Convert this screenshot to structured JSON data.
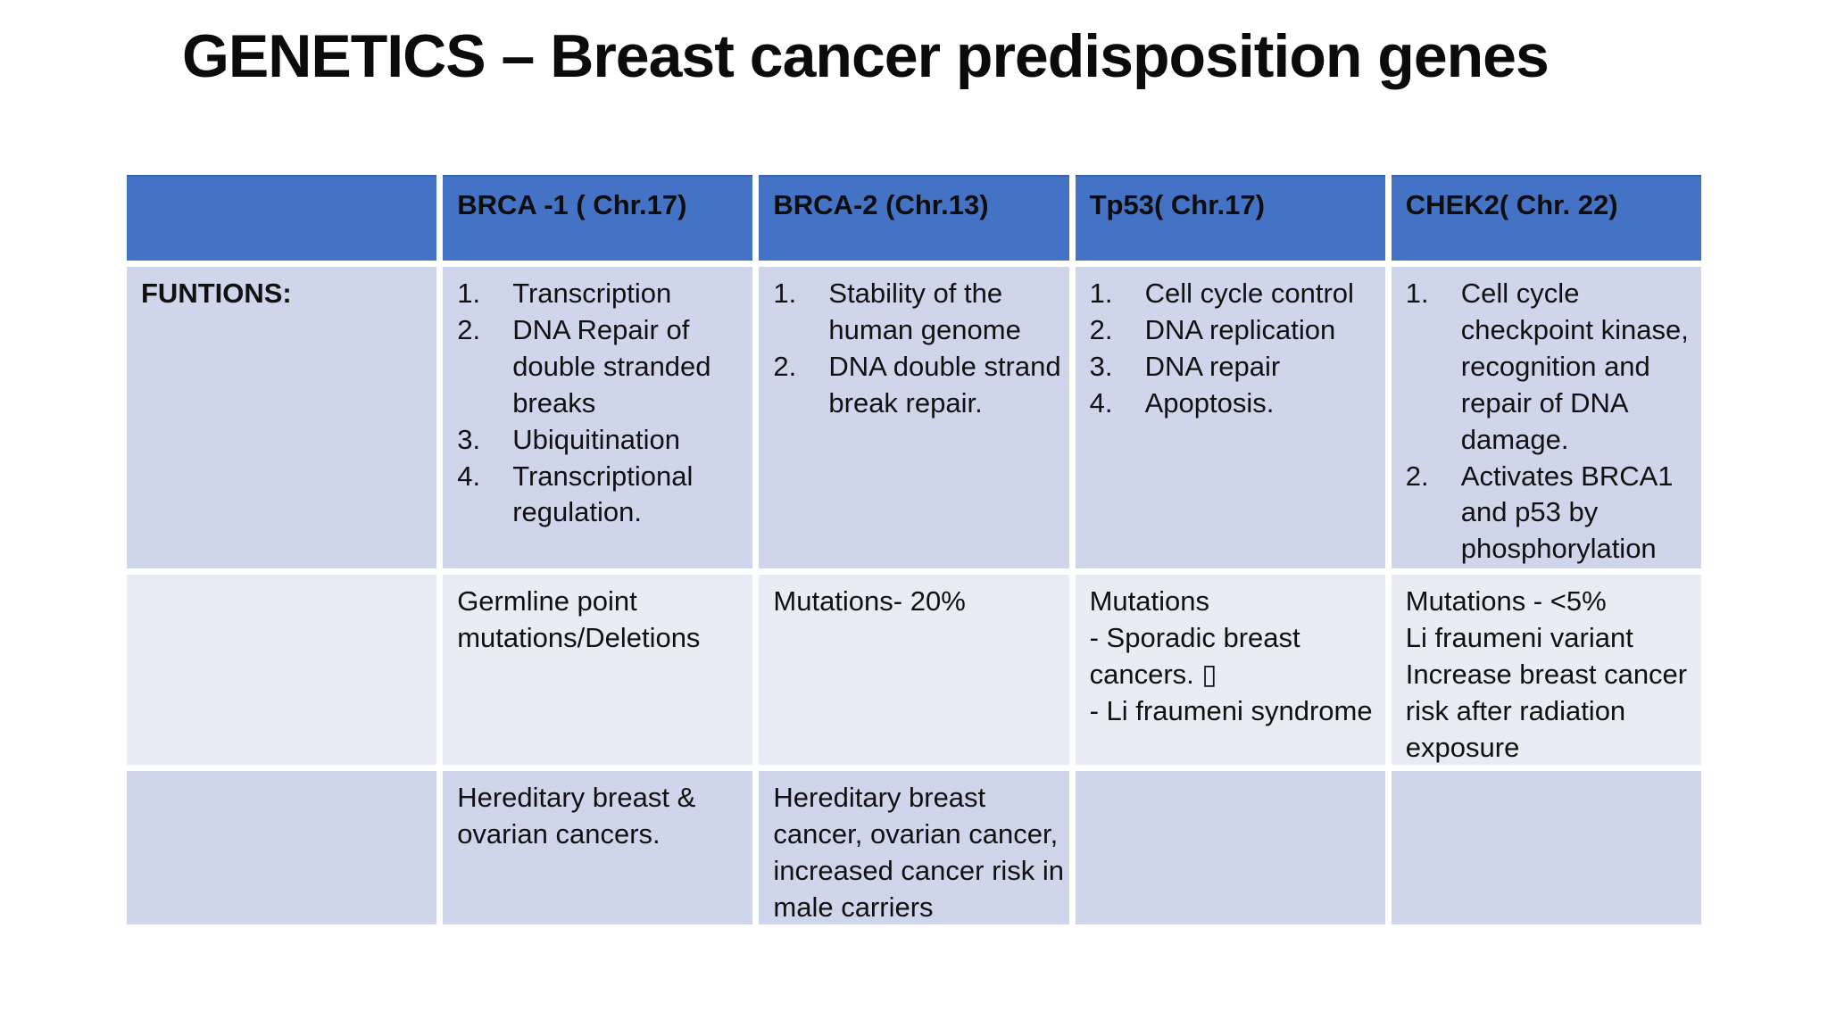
{
  "slide": {
    "title": "GENETICS – Breast cancer predisposition genes"
  },
  "colors": {
    "header_bg": "#4472C4",
    "header_top_border": "#3A62B0",
    "row_band_dark": "#CFD5EA",
    "row_band_light": "#E9EBF5",
    "text": "#111111",
    "background": "#FFFFFF"
  },
  "table": {
    "header": {
      "corner": "",
      "columns": [
        "BRCA -1 ( Chr.17)",
        "BRCA-2 (Chr.13)",
        "Tp53( Chr.17)",
        "CHEK2( Chr. 22)"
      ]
    },
    "rows": [
      {
        "label": "FUNTIONS:",
        "cells": [
          {
            "type": "numbered",
            "items": [
              "Transcription",
              "DNA Repair of double stranded breaks",
              "Ubiquitination",
              "Transcriptional regulation."
            ]
          },
          {
            "type": "numbered",
            "items": [
              "Stability of the human genome",
              "DNA double strand break repair."
            ]
          },
          {
            "type": "numbered",
            "items": [
              "Cell cycle control",
              "DNA replication",
              "DNA repair",
              "Apoptosis."
            ]
          },
          {
            "type": "numbered",
            "items": [
              "Cell cycle checkpoint kinase, recognition and repair of DNA damage.",
              "Activates BRCA1 and p53 by phosphorylation"
            ]
          }
        ]
      },
      {
        "label": "",
        "cells": [
          {
            "type": "lines",
            "lines": [
              "Germline point mutations/Deletions"
            ]
          },
          {
            "type": "lines",
            "lines": [
              "Mutations- 20%"
            ]
          },
          {
            "type": "lines",
            "lines": [
              "Mutations",
              "- Sporadic breast cancers. ▯",
              "- Li fraumeni syndrome"
            ]
          },
          {
            "type": "lines",
            "lines": [
              "Mutations - <5%",
              "Li fraumeni variant",
              "Increase breast cancer risk after radiation exposure"
            ]
          }
        ]
      },
      {
        "label": "",
        "cells": [
          {
            "type": "lines",
            "lines": [
              "Hereditary breast & ovarian cancers."
            ]
          },
          {
            "type": "lines",
            "lines": [
              "Hereditary breast cancer, ovarian cancer, increased cancer risk in male carriers"
            ]
          },
          {
            "type": "lines",
            "lines": []
          },
          {
            "type": "lines",
            "lines": []
          }
        ]
      }
    ]
  }
}
